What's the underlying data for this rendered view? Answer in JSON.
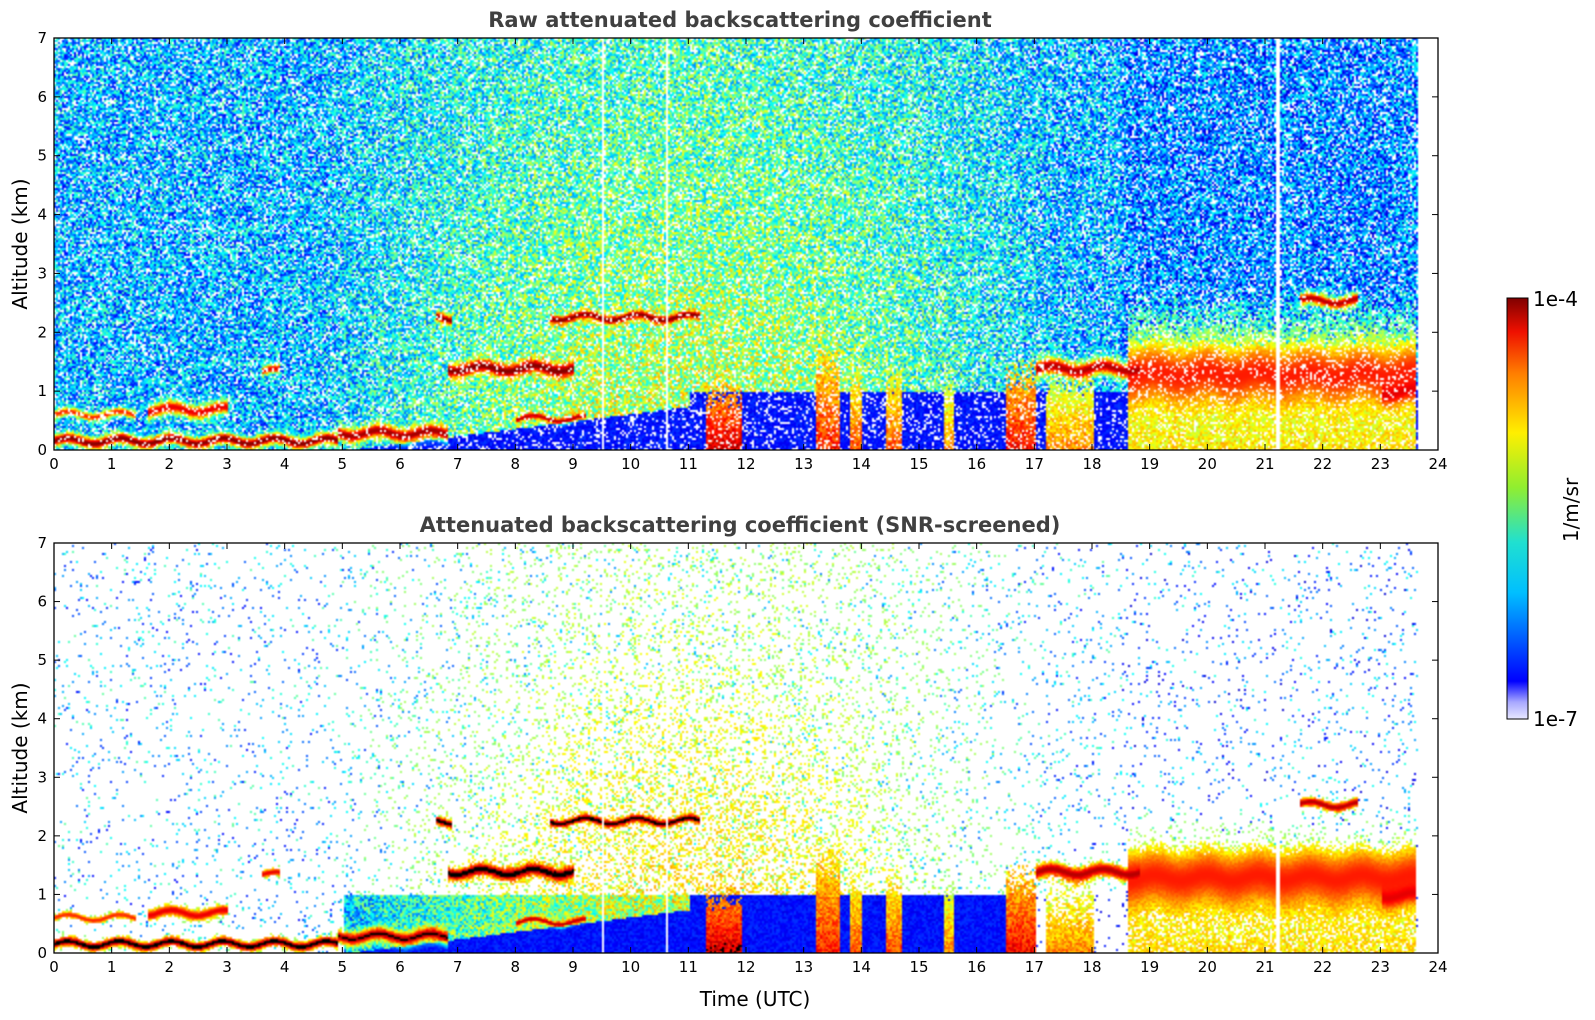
{
  "chart_data": [
    {
      "type": "heatmap",
      "title": "Raw attenuated backscattering coefficient",
      "xlabel": "",
      "ylabel": "Altitude (km)",
      "xlim": [
        0,
        24
      ],
      "ylim": [
        0,
        7
      ],
      "x_ticks": [
        "0",
        "1",
        "2",
        "3",
        "4",
        "5",
        "6",
        "7",
        "8",
        "9",
        "10",
        "11",
        "12",
        "13",
        "14",
        "15",
        "16",
        "17",
        "18",
        "19",
        "20",
        "21",
        "22",
        "23",
        "24"
      ],
      "y_ticks": [
        "0",
        "1",
        "2",
        "3",
        "4",
        "5",
        "6",
        "7"
      ],
      "screened": false
    },
    {
      "type": "heatmap",
      "title": "Attenuated backscattering coefficient (SNR-screened)",
      "xlabel": "Time (UTC)",
      "ylabel": "Altitude (km)",
      "xlim": [
        0,
        24
      ],
      "ylim": [
        0,
        7
      ],
      "x_ticks": [
        "0",
        "1",
        "2",
        "3",
        "4",
        "5",
        "6",
        "7",
        "8",
        "9",
        "10",
        "11",
        "12",
        "13",
        "14",
        "15",
        "16",
        "17",
        "18",
        "19",
        "20",
        "21",
        "22",
        "23",
        "24"
      ],
      "y_ticks": [
        "0",
        "1",
        "2",
        "3",
        "4",
        "5",
        "6",
        "7"
      ],
      "screened": true
    }
  ],
  "colorbar": {
    "max_label": "1e-4",
    "min_label": "1e-7",
    "unit_label": "1/m/sr",
    "colormap": "jet",
    "scale": "log"
  },
  "colors": {
    "background": "#ffffff",
    "title": "#404040",
    "axis": "#000000"
  }
}
